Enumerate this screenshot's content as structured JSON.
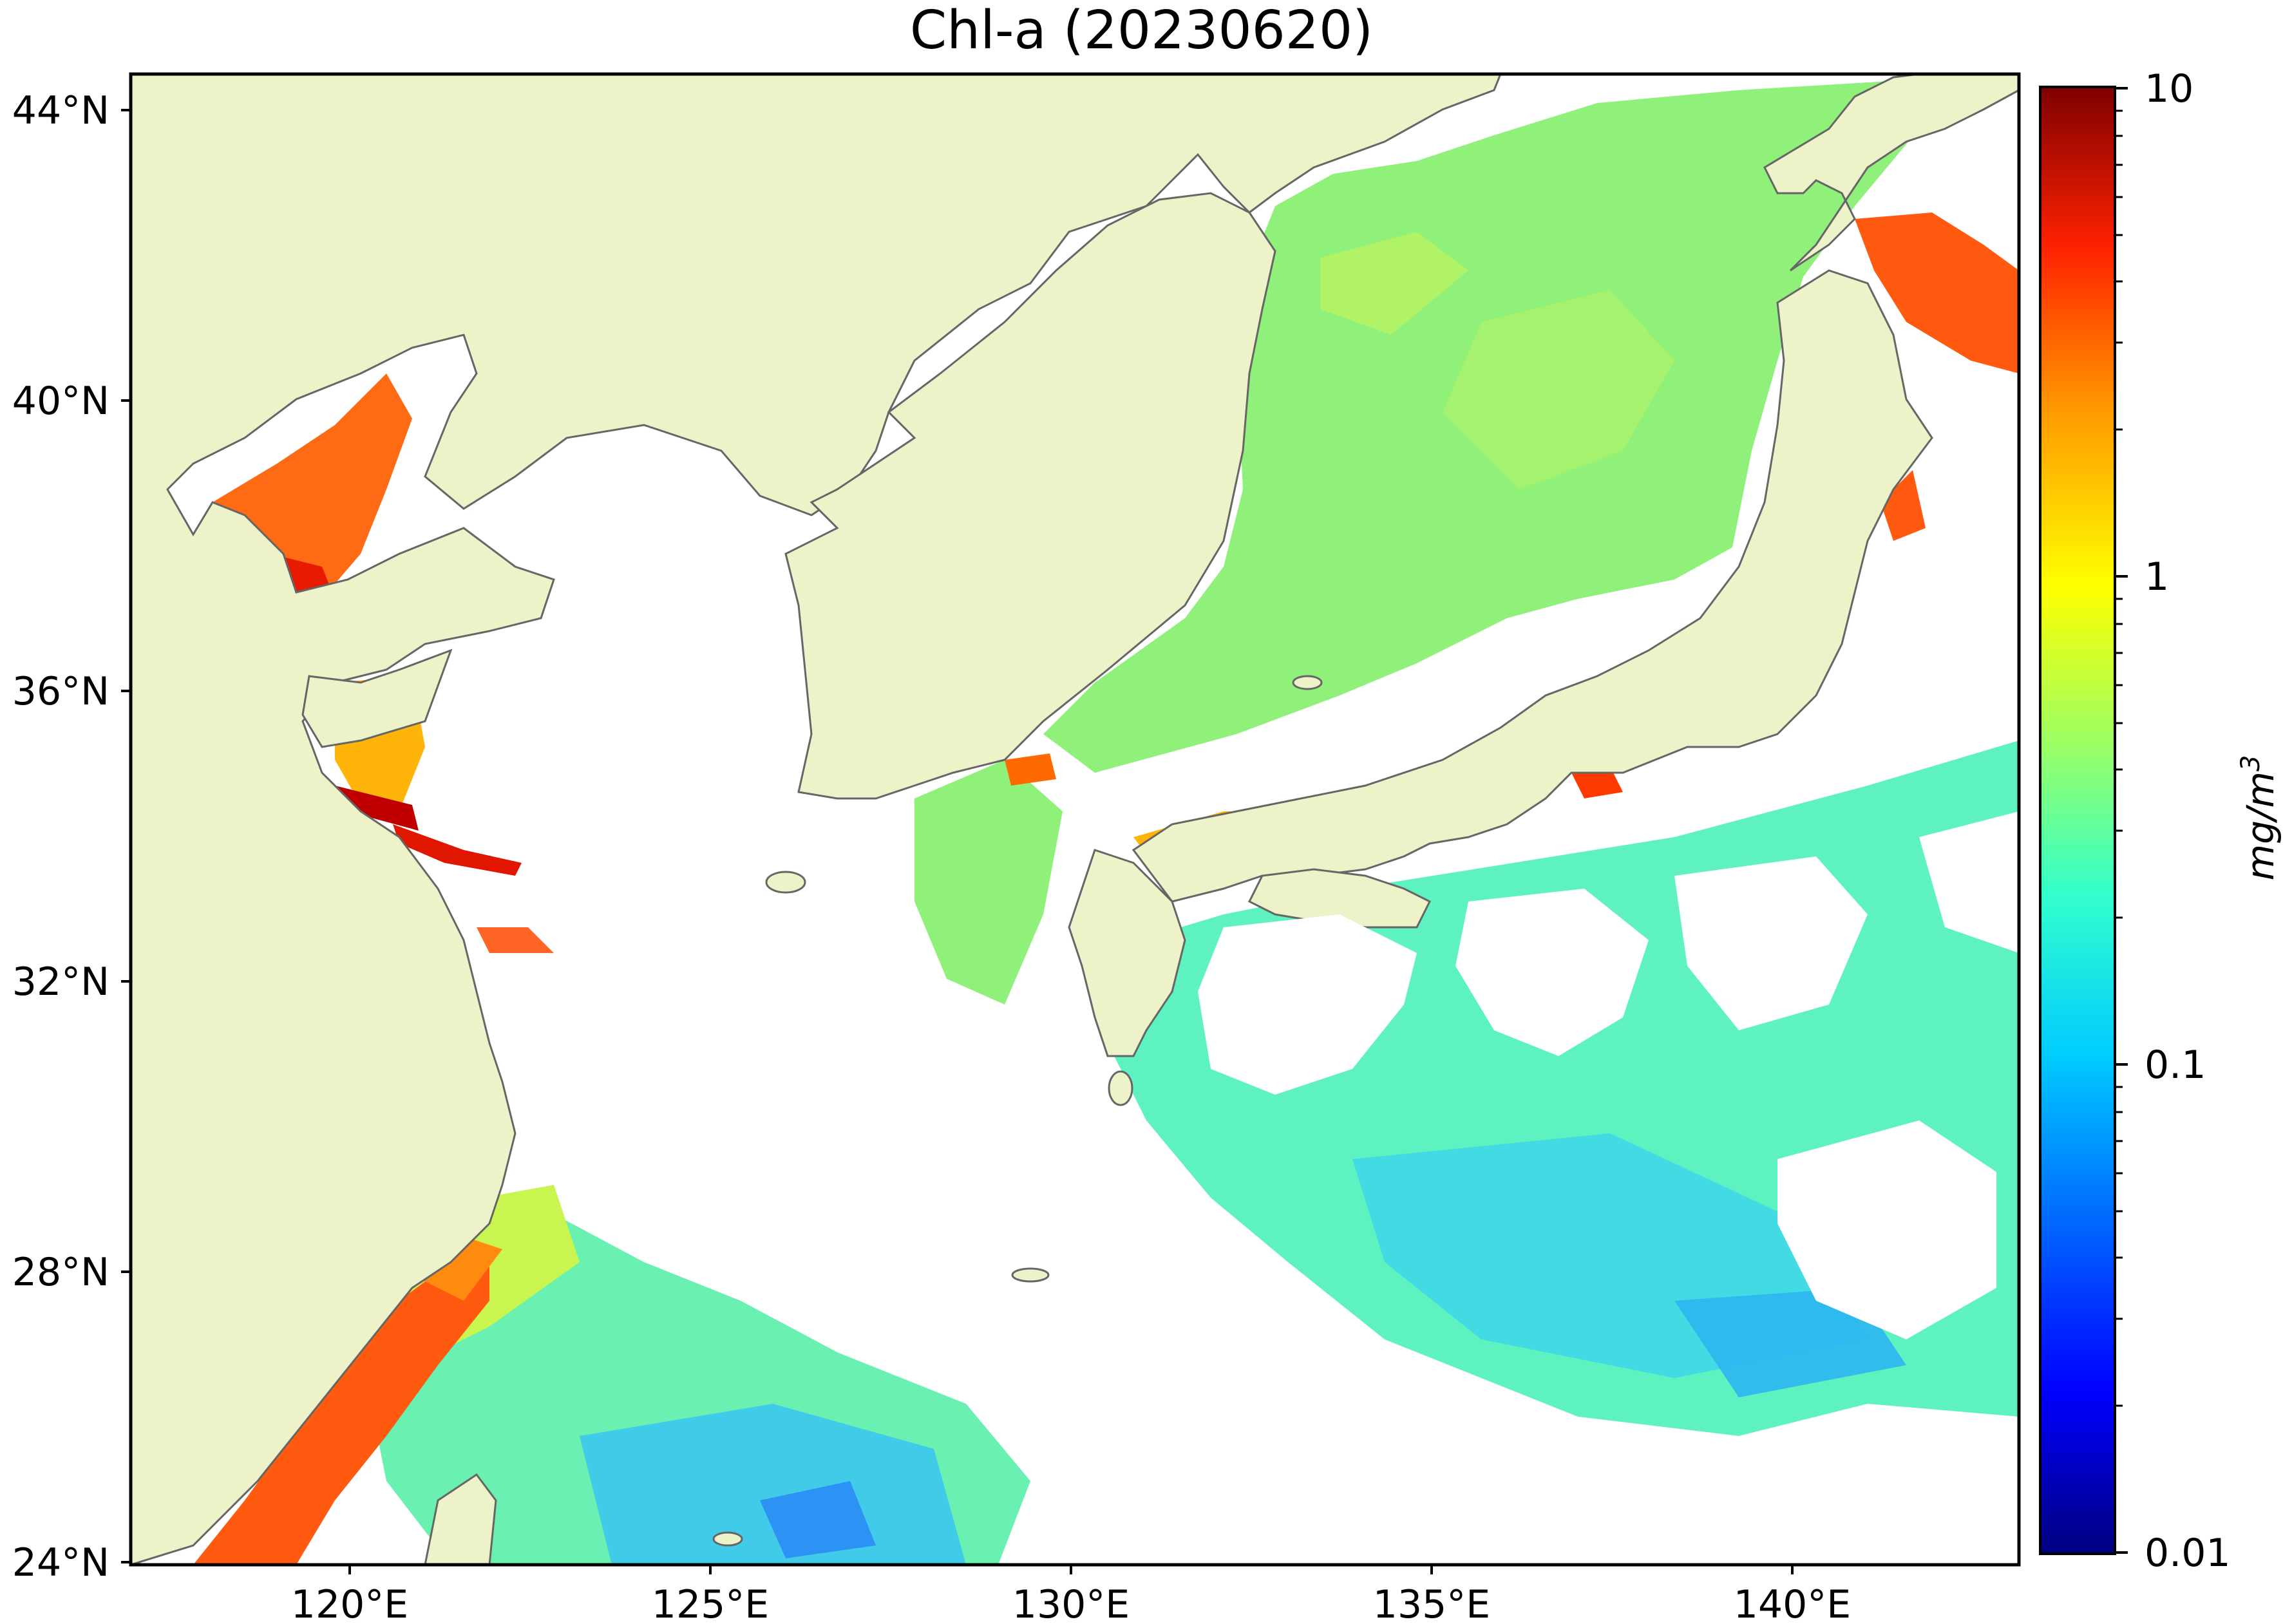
{
  "title": "Chl-a (20230620)",
  "map": {
    "lat_ticks": [
      "44°N",
      "40°N",
      "36°N",
      "32°N",
      "28°N",
      "24°N"
    ],
    "lon_ticks": [
      "120°E",
      "125°E",
      "130°E",
      "135°E",
      "140°E"
    ],
    "land_color": "#eef2c8",
    "cloud_color": "#ffffff",
    "coastline_color": "#666666"
  },
  "colorbar": {
    "label": "mg/m",
    "label_superscript": "3",
    "scale": "log",
    "range": [
      0.01,
      10
    ],
    "ticks": [
      "10",
      "1",
      "0.1",
      "0.01"
    ],
    "colormap": "jet",
    "colors": [
      "#00007f",
      "#0000ff",
      "#007fff",
      "#00ffff",
      "#7fff7f",
      "#ffff00",
      "#ff7f00",
      "#ff0000",
      "#7f0000"
    ]
  }
}
